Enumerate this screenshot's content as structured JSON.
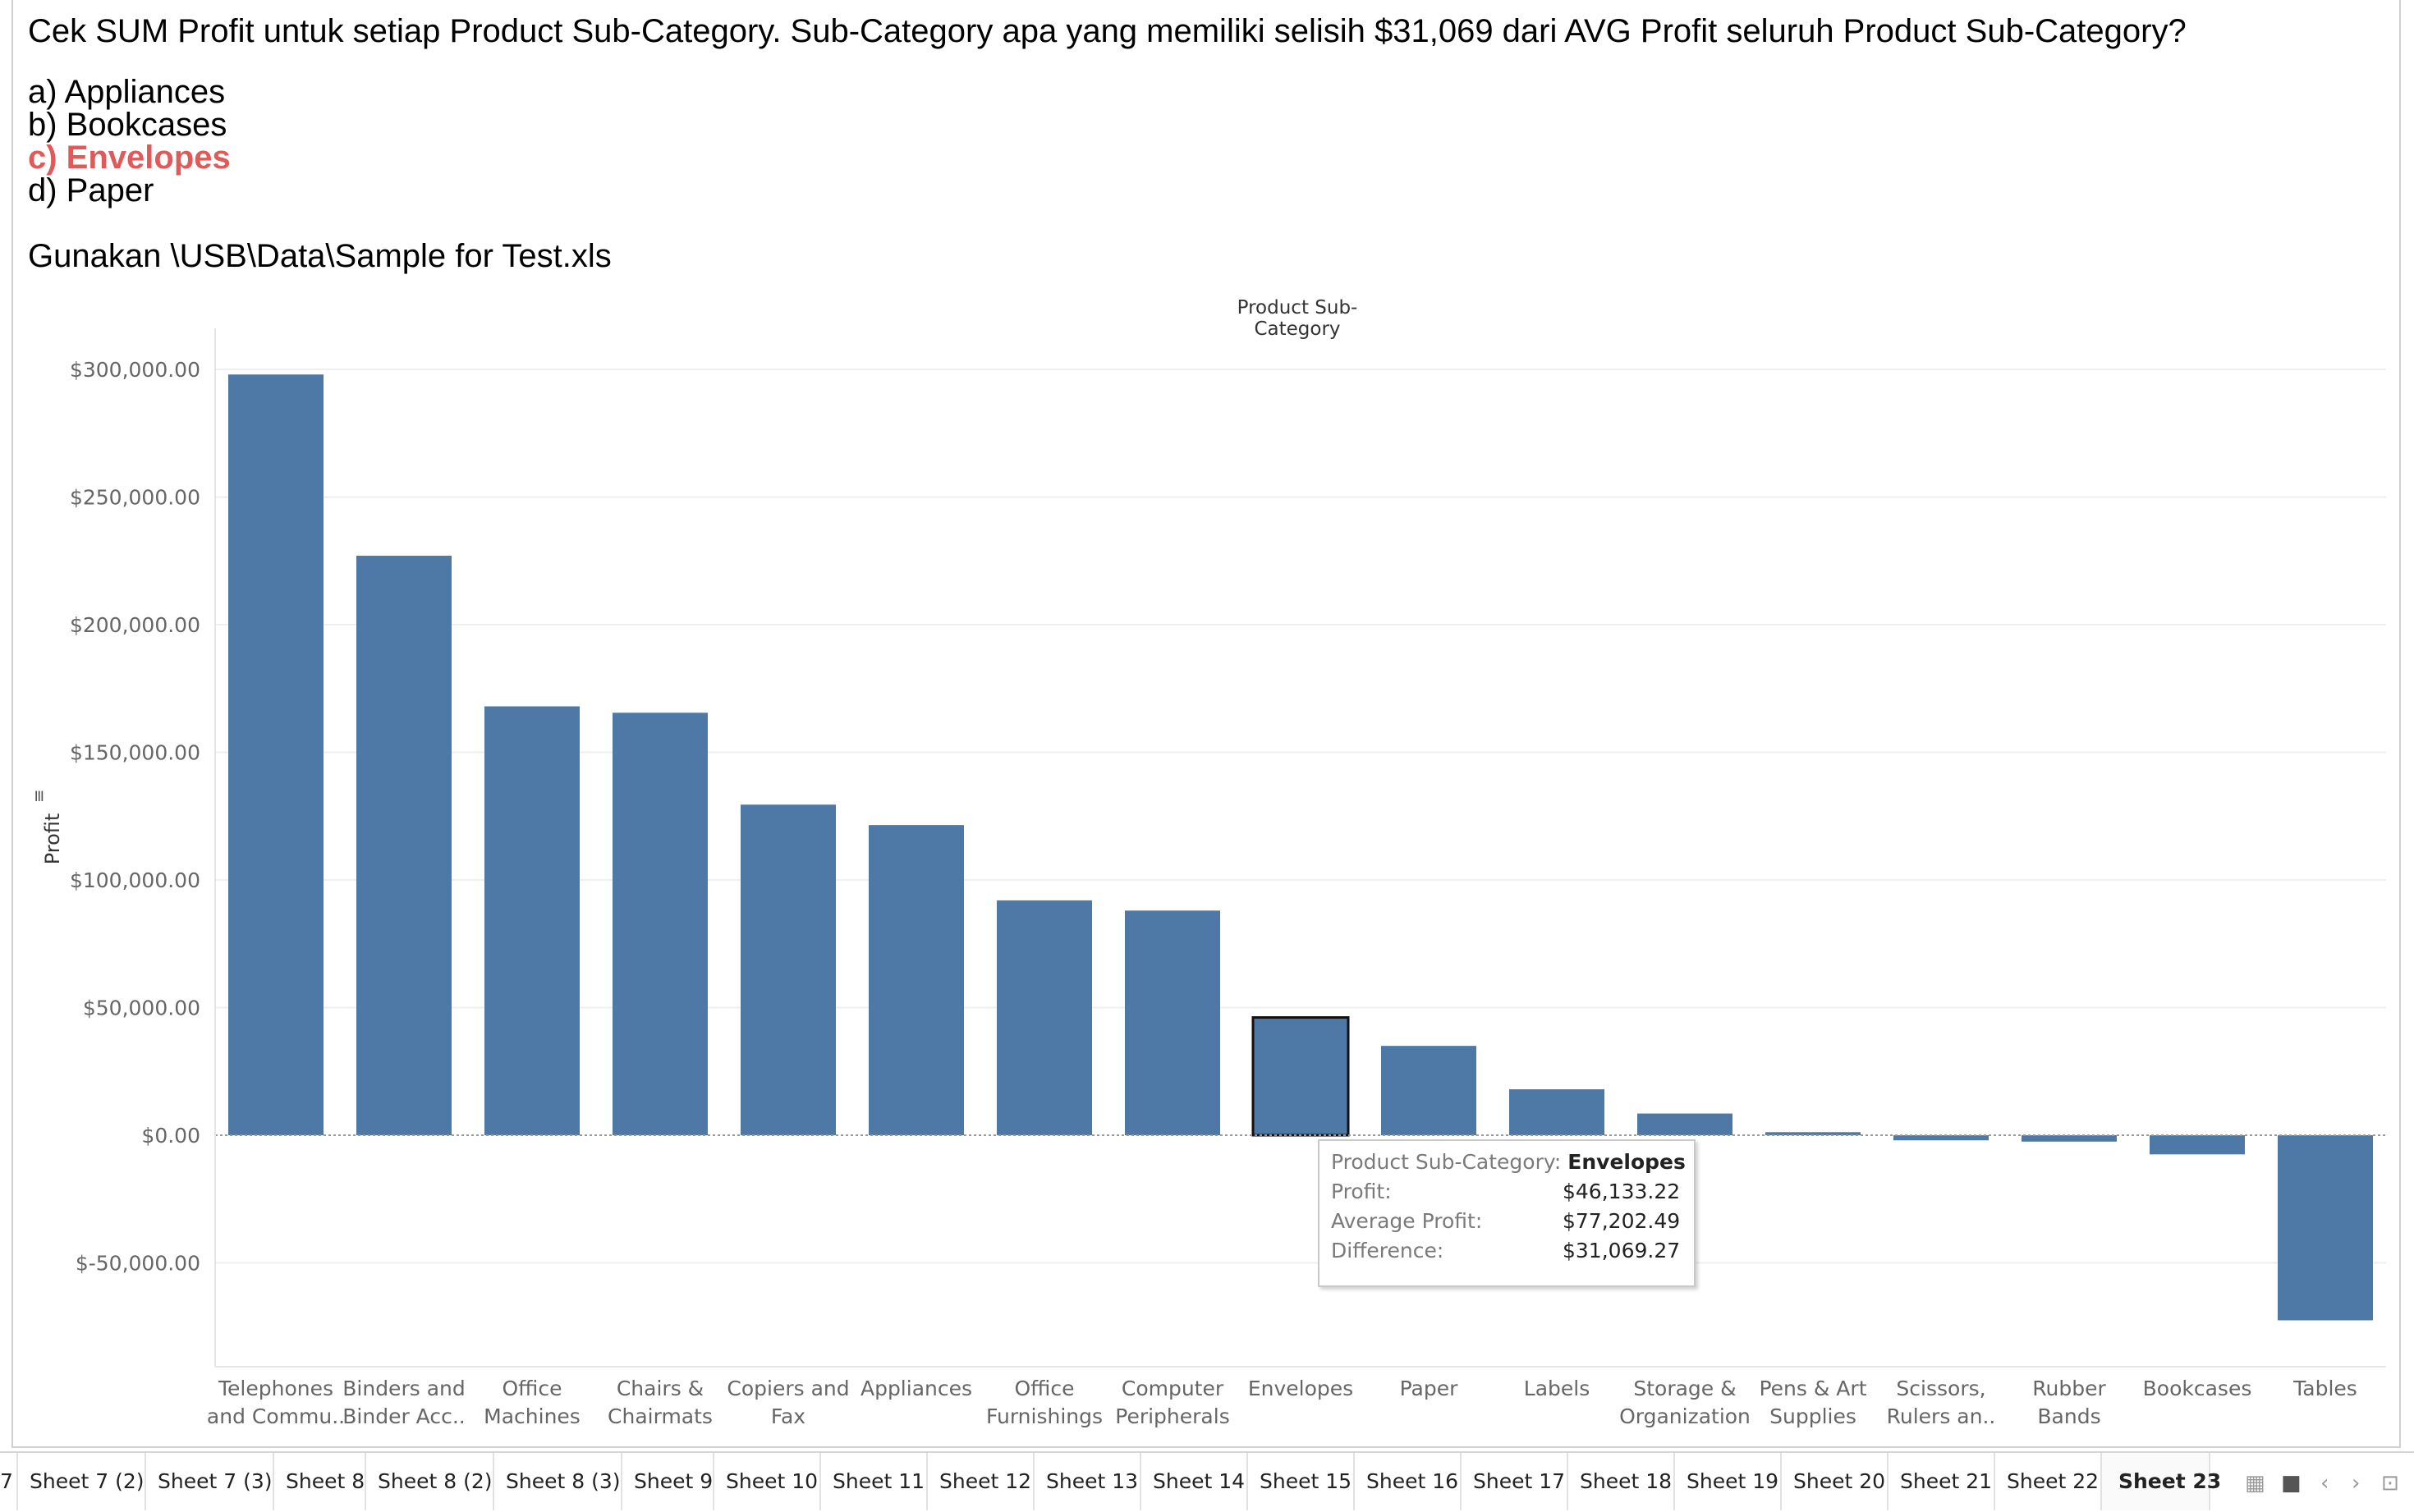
{
  "question": {
    "text": "Cek SUM Profit untuk setiap Product Sub-Category. Sub-Category apa yang memiliki selisih $31,069 dari AVG Profit seluruh Product Sub-Category?",
    "options": [
      "a) Appliances",
      "b) Bookcases",
      "c) Envelopes",
      "d) Paper"
    ],
    "correct_option_index": 2,
    "correct_color": "#e05a5a",
    "instruction": "Gunakan \\USB\\Data\\Sample for Test.xls"
  },
  "chart_data": {
    "type": "bar",
    "header": "Product Sub-Category",
    "ylabel": "Profit",
    "ylim": [
      -90000,
      310000
    ],
    "yticks": [
      -50000,
      0,
      50000,
      100000,
      150000,
      200000,
      250000,
      300000
    ],
    "ytick_labels": [
      "$-50,000.00",
      "$0.00",
      "$50,000.00",
      "$100,000.00",
      "$150,000.00",
      "$200,000.00",
      "$250,000.00",
      "$300,000.00"
    ],
    "bar_color": "#4e79a7",
    "highlighted_index": 8,
    "categories": [
      [
        "Telephones",
        "and Commu.."
      ],
      [
        "Binders and",
        "Binder Acc.."
      ],
      [
        "Office",
        "Machines"
      ],
      [
        "Chairs &",
        "Chairmats"
      ],
      [
        "Copiers and",
        "Fax"
      ],
      [
        "Appliances"
      ],
      [
        "Office",
        "Furnishings"
      ],
      [
        "Computer",
        "Peripherals"
      ],
      [
        "Envelopes"
      ],
      [
        "Paper"
      ],
      [
        "Labels"
      ],
      [
        "Storage &",
        "Organization"
      ],
      [
        "Pens & Art",
        "Supplies"
      ],
      [
        "Scissors,",
        "Rulers an.."
      ],
      [
        "Rubber",
        "Bands"
      ],
      [
        "Bookcases"
      ],
      [
        "Tables"
      ]
    ],
    "values": [
      298000,
      227000,
      168000,
      165500,
      129500,
      121500,
      92000,
      88000,
      46133.22,
      35000,
      18000,
      8500,
      1200,
      -2000,
      -2500,
      -7500,
      -72500
    ]
  },
  "tooltip": {
    "rows": [
      {
        "label": "Product Sub-Category:",
        "value": "Envelopes"
      },
      {
        "label": "Profit:",
        "value": "$46,133.22"
      },
      {
        "label": "Average Profit:",
        "value": "$77,202.49"
      },
      {
        "label": "Difference:",
        "value": "$31,069.27"
      }
    ]
  },
  "tabs": {
    "items": [
      "7",
      "Sheet 7 (2)",
      "Sheet 7 (3)",
      "Sheet 8",
      "Sheet 8 (2)",
      "Sheet 8 (3)",
      "Sheet 9",
      "Sheet 10",
      "Sheet 11",
      "Sheet 12",
      "Sheet 13",
      "Sheet 14",
      "Sheet 15",
      "Sheet 16",
      "Sheet 17",
      "Sheet 18",
      "Sheet 19",
      "Sheet 20",
      "Sheet 21",
      "Sheet 22",
      "Sheet 23"
    ],
    "active": "Sheet 23"
  }
}
